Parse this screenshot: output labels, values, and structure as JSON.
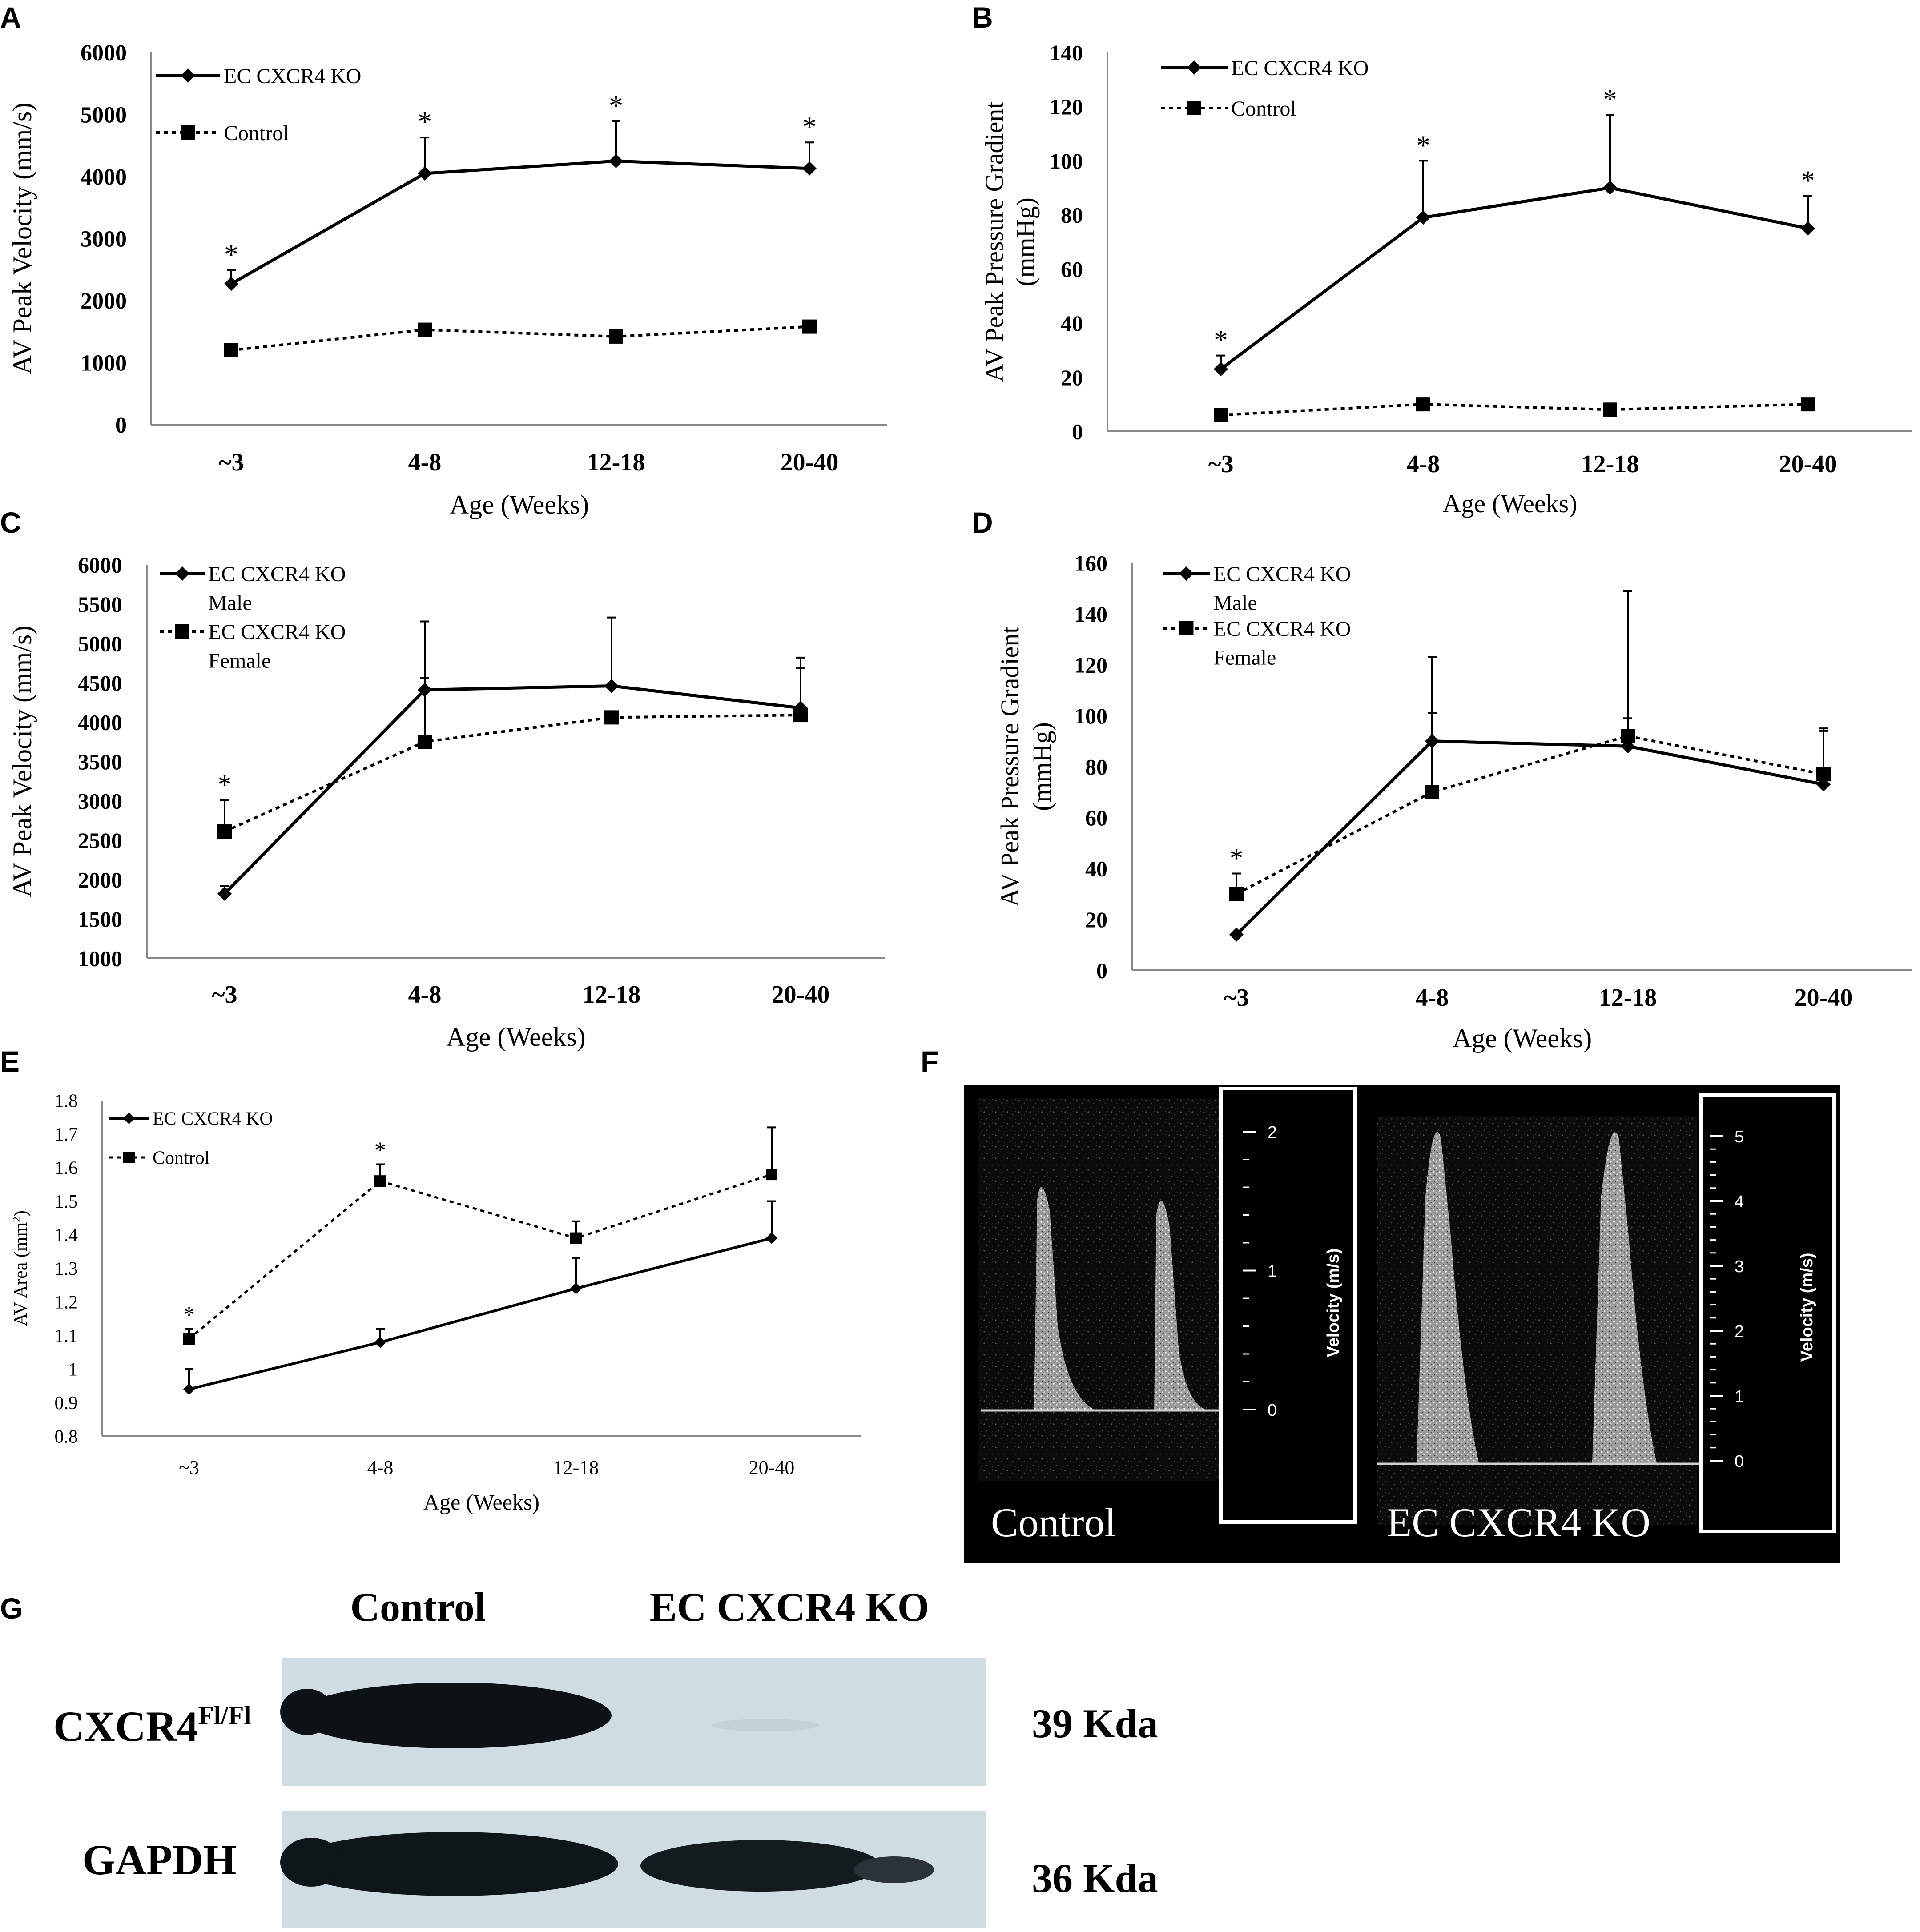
{
  "panels": {
    "A": "A",
    "B": "B",
    "C": "C",
    "D": "D",
    "E": "E",
    "F": "F",
    "G": "G"
  },
  "chart_data": [
    {
      "panel": "A",
      "type": "line",
      "xlabel": "Age (Weeks)",
      "ylabel": "AV Peak Velocity (mm/s)",
      "categories": [
        "~3",
        "4-8",
        "12-18",
        "20-40"
      ],
      "ylim": [
        0,
        6000
      ],
      "yticks": [
        0,
        1000,
        2000,
        3000,
        4000,
        5000,
        6000
      ],
      "legend_position": "top-left",
      "grid": false,
      "series": [
        {
          "name": "EC CXCR4 KO",
          "style": "solid",
          "marker": "diamond",
          "values": [
            2270,
            4050,
            4250,
            4130
          ],
          "error": [
            220,
            580,
            640,
            420
          ],
          "significant": [
            true,
            true,
            true,
            true
          ]
        },
        {
          "name": "Control",
          "style": "dotted",
          "marker": "square",
          "values": [
            1200,
            1530,
            1420,
            1580
          ],
          "error": [
            0,
            0,
            0,
            0
          ],
          "significant": [
            false,
            false,
            false,
            false
          ]
        }
      ]
    },
    {
      "panel": "B",
      "type": "line",
      "xlabel": "Age (Weeks)",
      "ylabel": "AV Peak Pressure Gradient",
      "ylabel2": "(mmHg)",
      "categories": [
        "~3",
        "4-8",
        "12-18",
        "20-40"
      ],
      "ylim": [
        0,
        140
      ],
      "yticks": [
        0,
        20,
        40,
        60,
        80,
        100,
        120,
        140
      ],
      "legend_position": "top-left",
      "grid": false,
      "series": [
        {
          "name": "EC CXCR4 KO",
          "style": "solid",
          "marker": "diamond",
          "values": [
            23,
            79,
            90,
            75
          ],
          "error": [
            5,
            21,
            27,
            12
          ],
          "significant": [
            true,
            true,
            true,
            true
          ]
        },
        {
          "name": "Control",
          "style": "dotted",
          "marker": "square",
          "values": [
            6,
            10,
            8,
            10
          ],
          "error": [
            0,
            0,
            0,
            0
          ],
          "significant": [
            false,
            false,
            false,
            false
          ]
        }
      ]
    },
    {
      "panel": "C",
      "type": "line",
      "xlabel": "Age (Weeks)",
      "ylabel": "AV Peak Velocity (mm/s)",
      "categories": [
        "~3",
        "4-8",
        "12-18",
        "20-40"
      ],
      "ylim": [
        1000,
        6000
      ],
      "yticks": [
        1000,
        1500,
        2000,
        2500,
        3000,
        3500,
        4000,
        4500,
        5000,
        5500,
        6000
      ],
      "legend_position": "top-left",
      "grid": false,
      "series": [
        {
          "name": "EC CXCR4 KO",
          "name2": "Male",
          "style": "solid",
          "marker": "diamond",
          "values": [
            1820,
            4410,
            4460,
            4180
          ],
          "error": [
            100,
            870,
            870,
            640
          ],
          "significant": [
            false,
            false,
            false,
            false
          ]
        },
        {
          "name": "EC CXCR4 KO",
          "name2": "Female",
          "style": "dotted",
          "marker": "square",
          "values": [
            2610,
            3750,
            4060,
            4090
          ],
          "error": [
            400,
            810,
            0,
            600
          ],
          "significant": [
            true,
            false,
            false,
            false
          ]
        }
      ]
    },
    {
      "panel": "D",
      "type": "line",
      "xlabel": "Age (Weeks)",
      "ylabel": "AV Peak Pressure Gradient",
      "ylabel2": "(mmHg)",
      "categories": [
        "~3",
        "4-8",
        "12-18",
        "20-40"
      ],
      "ylim": [
        0,
        160
      ],
      "yticks": [
        0,
        20,
        40,
        60,
        80,
        100,
        120,
        140,
        160
      ],
      "legend_position": "top-left",
      "grid": false,
      "series": [
        {
          "name": "EC CXCR4 KO",
          "name2": "Male",
          "style": "solid",
          "marker": "diamond",
          "values": [
            14,
            90,
            88,
            73
          ],
          "error": [
            0,
            33,
            61,
            21
          ],
          "significant": [
            false,
            false,
            false,
            false
          ]
        },
        {
          "name": "EC CXCR4 KO",
          "name2": "Female",
          "style": "dotted",
          "marker": "square",
          "values": [
            30,
            70,
            92,
            77
          ],
          "error": [
            8,
            31,
            7,
            18
          ],
          "significant": [
            true,
            false,
            false,
            false
          ]
        }
      ]
    },
    {
      "panel": "E",
      "type": "line",
      "xlabel": "Age (Weeks)",
      "ylabel": "AV Area (mm",
      "ylabel_sup": "2",
      "ylabel_end": ")",
      "categories": [
        "~3",
        "4-8",
        "12-18",
        "20-40"
      ],
      "ylim": [
        0.8,
        1.8
      ],
      "yticks": [
        0.8,
        0.9,
        1,
        1.1,
        1.2,
        1.3,
        1.4,
        1.5,
        1.6,
        1.7,
        1.8
      ],
      "legend_position": "top-left",
      "grid": false,
      "series": [
        {
          "name": "EC CXCR4 KO",
          "style": "solid",
          "marker": "diamond",
          "values": [
            0.94,
            1.08,
            1.24,
            1.39
          ],
          "error": [
            0.06,
            0.04,
            0.09,
            0.11
          ],
          "significant": [
            false,
            false,
            false,
            false
          ]
        },
        {
          "name": "Control",
          "style": "dotted",
          "marker": "square",
          "values": [
            1.09,
            1.56,
            1.39,
            1.58
          ],
          "error": [
            0.03,
            0.05,
            0.05,
            0.14
          ],
          "significant": [
            true,
            true,
            false,
            false
          ]
        }
      ]
    }
  ],
  "doppler": {
    "left": {
      "label": "Control",
      "scale_title": "Velocity (m/s)",
      "ticks": [
        "2",
        "1",
        "0"
      ]
    },
    "right": {
      "label": "EC CXCR4 KO",
      "scale_title": "Velocity (m/s)",
      "ticks": [
        "5",
        "4",
        "3",
        "2",
        "1",
        "0"
      ]
    }
  },
  "western": {
    "col_control": "Control",
    "col_ko": "EC CXCR4 KO",
    "row1_label": "CXCR4",
    "row1_sup": "Fl/Fl",
    "row1_size": "39 Kda",
    "row2_label": "GAPDH",
    "row2_size": "36 Kda"
  }
}
